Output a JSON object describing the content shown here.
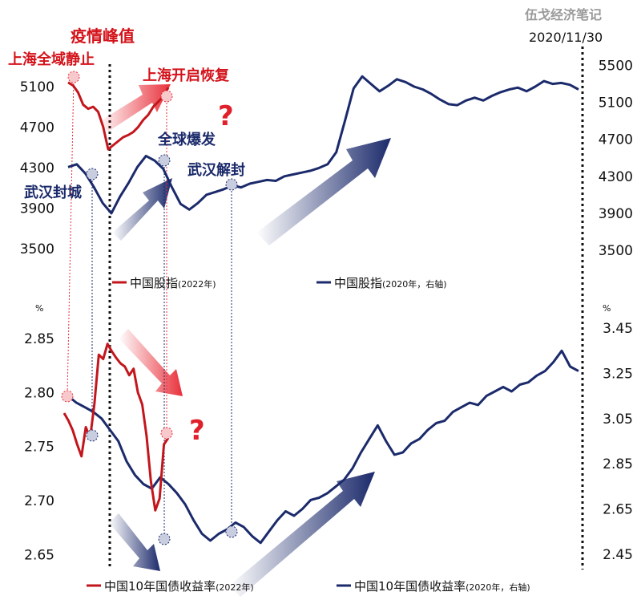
{
  "watermark": "伍戈经济笔记",
  "date_label": "2020/11/30",
  "percent_left": "%",
  "percent_right": "%",
  "colors": {
    "series_2022": "#c3161c",
    "series_2020": "#1b2a6b",
    "arrow_red": "#e8303a",
    "arrow_navy": "#1b2a6b",
    "note_red": "#d4121a",
    "note_navy": "#1b2a6b"
  },
  "events": [
    {
      "label": "上海全域静止",
      "color": "red"
    },
    {
      "label": "疫情峰值",
      "color": "red"
    },
    {
      "label": "上海开启恢复",
      "color": "red"
    },
    {
      "label": "武汉封城",
      "color": "navy"
    },
    {
      "label": "全球爆发",
      "color": "navy"
    },
    {
      "label": "武汉解封",
      "color": "navy"
    }
  ],
  "question_marks": [
    "?",
    "?"
  ],
  "chart_data": [
    {
      "type": "line",
      "title": "",
      "y_left": {
        "ticks": [
          3500,
          3900,
          4300,
          4700,
          5100
        ],
        "range": [
          3300,
          5400
        ]
      },
      "y_right": {
        "ticks": [
          3500,
          3900,
          4300,
          4700,
          5100,
          5500
        ],
        "range": [
          3300,
          5600
        ]
      },
      "legend": [
        {
          "text": "中国股指",
          "note": "(2022年)"
        },
        {
          "text": "中国股指",
          "note": "(2020年，右轴)"
        }
      ],
      "series": [
        {
          "name": "中国股指(2022年)",
          "axis": "left",
          "values": [
            5140,
            5110,
            5040,
            4920,
            4880,
            4900,
            4850,
            4700,
            4480,
            4520,
            4560,
            4600,
            4620,
            4650,
            4700,
            4770,
            4820,
            4900,
            4950,
            5000,
            5090
          ]
        },
        {
          "name": "中国股指(2020年，右轴)",
          "axis": "right",
          "values": [
            4400,
            4430,
            4330,
            4180,
            4010,
            3900,
            4080,
            4230,
            4400,
            4520,
            4470,
            4380,
            4180,
            4000,
            3940,
            4010,
            4100,
            4130,
            4160,
            4200,
            4180,
            4220,
            4240,
            4260,
            4250,
            4300,
            4320,
            4340,
            4360,
            4390,
            4430,
            4560,
            4900,
            5250,
            5380,
            5300,
            5220,
            5280,
            5350,
            5320,
            5270,
            5240,
            5190,
            5130,
            5080,
            5070,
            5120,
            5150,
            5120,
            5170,
            5210,
            5240,
            5260,
            5220,
            5270,
            5330,
            5300,
            5310,
            5290,
            5240
          ]
        }
      ]
    },
    {
      "type": "line",
      "title": "",
      "y_left": {
        "ticks": [
          2.65,
          2.7,
          2.75,
          2.8,
          2.85
        ],
        "range": [
          2.64,
          2.87
        ]
      },
      "y_right": {
        "ticks": [
          2.45,
          2.65,
          2.85,
          3.05,
          3.25,
          3.45
        ],
        "range": [
          2.4,
          3.5
        ]
      },
      "legend": [
        {
          "text": "中国10年国债收益率",
          "note": "(2022年)"
        },
        {
          "text": "中国10年国债收益率",
          "note": "(2020年，右轴)"
        }
      ],
      "series": [
        {
          "name": "中国10年国债收益率(2022年)",
          "axis": "left",
          "values": [
            2.781,
            2.774,
            2.765,
            2.752,
            2.741,
            2.768,
            2.758,
            2.79,
            2.835,
            2.831,
            2.845,
            2.838,
            2.832,
            2.827,
            2.824,
            2.816,
            2.822,
            2.8,
            2.789,
            2.76,
            2.718,
            2.691,
            2.702,
            2.752,
            2.758
          ]
        },
        {
          "name": "中国10年国债收益率(2020年，右轴)",
          "axis": "right",
          "values": [
            3.15,
            3.12,
            3.1,
            3.08,
            3.05,
            3.0,
            2.95,
            2.86,
            2.8,
            2.76,
            2.74,
            2.79,
            2.76,
            2.72,
            2.67,
            2.6,
            2.54,
            2.51,
            2.54,
            2.56,
            2.59,
            2.57,
            2.53,
            2.5,
            2.55,
            2.6,
            2.64,
            2.62,
            2.65,
            2.69,
            2.7,
            2.72,
            2.75,
            2.78,
            2.83,
            2.9,
            2.96,
            3.02,
            2.95,
            2.89,
            2.9,
            2.94,
            2.96,
            3.0,
            3.03,
            3.04,
            3.08,
            3.1,
            3.12,
            3.11,
            3.15,
            3.17,
            3.19,
            3.17,
            3.2,
            3.21,
            3.24,
            3.26,
            3.3,
            3.35,
            3.28,
            3.26
          ]
        }
      ]
    }
  ]
}
